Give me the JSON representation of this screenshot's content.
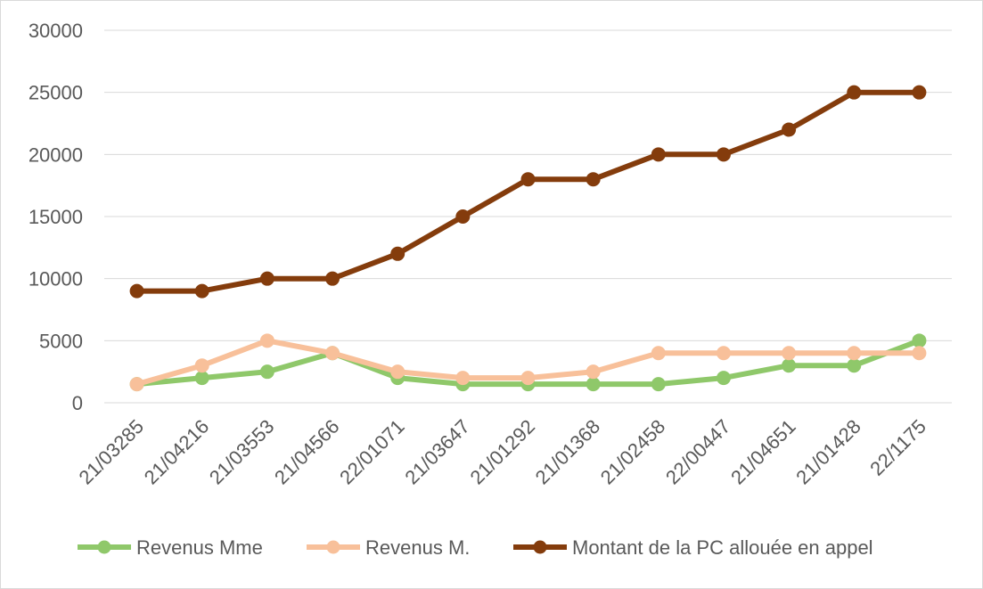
{
  "chart_data": {
    "type": "line",
    "title": "",
    "xlabel": "",
    "ylabel": "",
    "categories": [
      "21/03285",
      "21/04216",
      "21/03553",
      "21/04566",
      "22/01071",
      "21/03647",
      "21/01292",
      "21/01368",
      "21/02458",
      "22/00447",
      "21/04651",
      "21/01428",
      "22/1175"
    ],
    "ylim": [
      0,
      30000
    ],
    "yticks": [
      0,
      5000,
      10000,
      15000,
      20000,
      25000,
      30000
    ],
    "grid": true,
    "legend_position": "bottom",
    "series": [
      {
        "name": "Revenus Mme",
        "color": "#8fc86a",
        "values": [
          1500,
          2000,
          2500,
          4000,
          2000,
          1500,
          1500,
          1500,
          1500,
          2000,
          3000,
          3000,
          5000
        ]
      },
      {
        "name": "Revenus M.",
        "color": "#f8c09a",
        "values": [
          1500,
          3000,
          5000,
          4000,
          2500,
          2000,
          2000,
          2500,
          4000,
          4000,
          4000,
          4000,
          4000
        ]
      },
      {
        "name": "Montant de la PC allouée en appel",
        "color": "#843c0c",
        "values": [
          9000,
          9000,
          10000,
          10000,
          12000,
          15000,
          18000,
          18000,
          20000,
          20000,
          22000,
          25000,
          25000
        ]
      }
    ]
  }
}
